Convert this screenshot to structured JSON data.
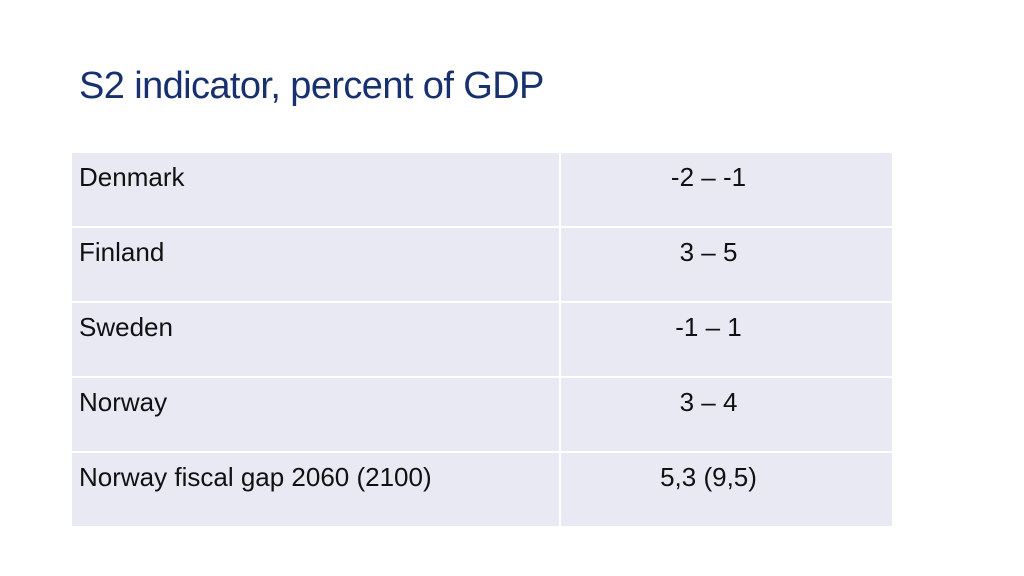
{
  "slide": {
    "title": "S2 indicator, percent of GDP"
  },
  "table": {
    "rows": [
      {
        "label": "Denmark",
        "value": "-2 – -1"
      },
      {
        "label": "Finland",
        "value": "3 – 5"
      },
      {
        "label": "Sweden",
        "value": "-1 – 1"
      },
      {
        "label": "Norway",
        "value": "3 – 4"
      },
      {
        "label": "Norway fiscal gap 2060 (2100)",
        "value": "5,3 (9,5)"
      }
    ]
  }
}
